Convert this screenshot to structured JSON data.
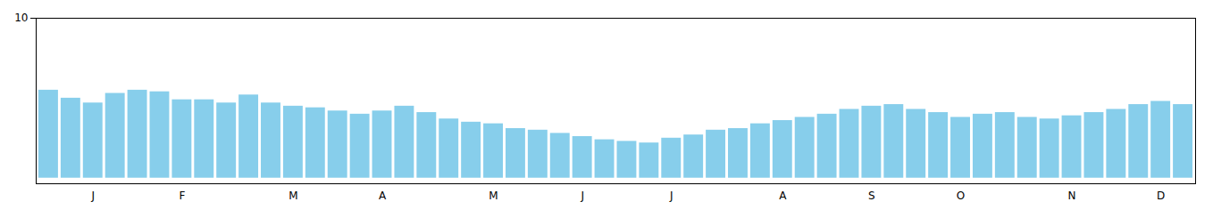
{
  "chart_data": {
    "type": "bar",
    "categories": [
      null,
      null,
      "J",
      null,
      null,
      null,
      "F",
      null,
      null,
      null,
      null,
      "M",
      null,
      null,
      null,
      "A",
      null,
      null,
      null,
      null,
      "M",
      null,
      null,
      null,
      "J",
      null,
      null,
      null,
      "J",
      null,
      null,
      null,
      null,
      "A",
      null,
      null,
      null,
      "S",
      null,
      null,
      null,
      "O",
      null,
      null,
      null,
      null,
      "N",
      null,
      null,
      null,
      "D",
      null
    ],
    "values": [
      5.5,
      5.0,
      4.7,
      5.3,
      5.5,
      5.4,
      4.9,
      4.9,
      4.7,
      5.2,
      4.7,
      4.5,
      4.4,
      4.2,
      4.0,
      4.2,
      4.5,
      4.1,
      3.7,
      3.5,
      3.4,
      3.1,
      3.0,
      2.8,
      2.6,
      2.4,
      2.3,
      2.2,
      2.5,
      2.7,
      3.0,
      3.1,
      3.4,
      3.6,
      3.8,
      4.0,
      4.3,
      4.5,
      4.6,
      4.3,
      4.1,
      3.8,
      4.0,
      4.1,
      3.8,
      3.7,
      3.9,
      4.1,
      4.3,
      4.6,
      4.8,
      4.6
    ],
    "color": "#87CEEB",
    "ylim": [
      -0.35,
      10
    ],
    "yticks": [
      10
    ],
    "grid": false
  }
}
